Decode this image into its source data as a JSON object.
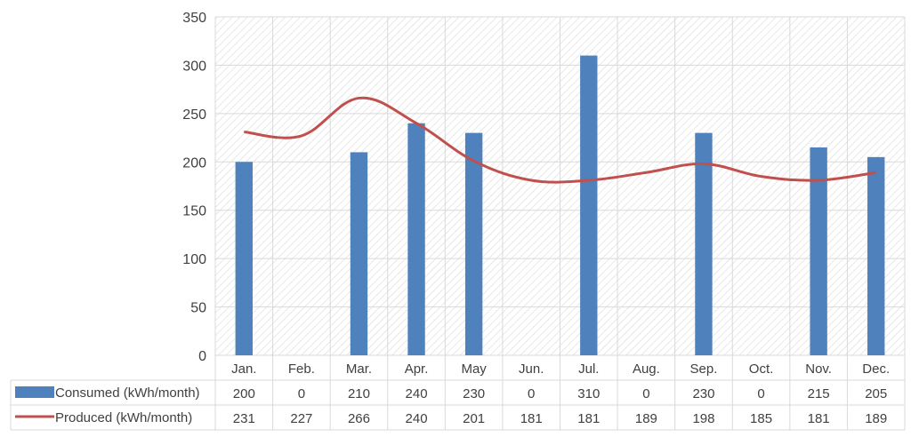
{
  "chart_data": {
    "type": "bar",
    "categories": [
      "Jan.",
      "Feb.",
      "Mar.",
      "Apr.",
      "May",
      "Jun.",
      "Jul.",
      "Aug.",
      "Sep.",
      "Oct.",
      "Nov.",
      "Dec."
    ],
    "series": [
      {
        "name": "Consumed (kWh/month)",
        "type": "bar",
        "color": "#4F81BD",
        "values": [
          200,
          0,
          210,
          240,
          230,
          0,
          310,
          0,
          230,
          0,
          215,
          205
        ]
      },
      {
        "name": "Produced (kWh/month)",
        "type": "line",
        "color": "#C0504D",
        "values": [
          231,
          227,
          266,
          240,
          201,
          181,
          181,
          189,
          198,
          185,
          181,
          189
        ]
      }
    ],
    "ylim": [
      0,
      350
    ],
    "yticks": [
      0,
      50,
      100,
      150,
      200,
      250,
      300,
      350
    ],
    "grid": true,
    "legend": "data-table",
    "plot_background": "hatched",
    "data_table": true
  }
}
